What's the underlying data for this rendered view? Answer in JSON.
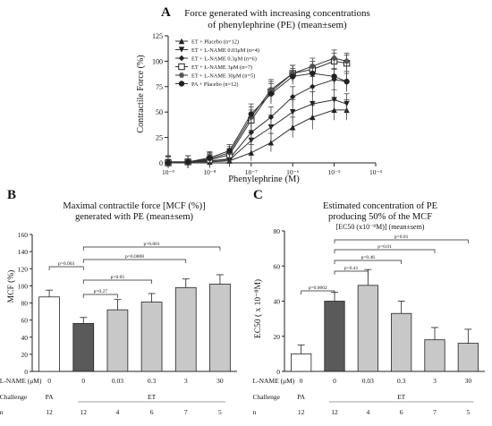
{
  "panels": {
    "a": {
      "letter": "A",
      "title_line1": "Force generated with increasing concentrations",
      "title_line2": "of phenylephrine (PE) (mean±sem)",
      "ylabel": "Contractile Force (%)",
      "xlabel": "Phenylephrine (M)"
    },
    "b": {
      "letter": "B",
      "title_line1": "Maximal contractile force [MCF (%)]",
      "title_line2": "generated with PE (mean±sem)",
      "ylabel": "MCF (%)"
    },
    "c": {
      "letter": "C",
      "title_line1": "Estimated concentration of PE",
      "title_line2": "producing 50% of the MCF",
      "title_line3": "[EC50 (x10⁻⁸M)] (mean±sem)",
      "ylabel": "EC50 ( x 10⁻⁸M)"
    }
  },
  "table": {
    "row_labels": [
      "L-NAME (μM)",
      "Challenge",
      "n"
    ],
    "lname": [
      "0",
      "0",
      "0.03",
      "0.3",
      "3",
      "30"
    ],
    "challenge_pa": "PA",
    "challenge_et": "ET",
    "n": [
      "12",
      "12",
      "4",
      "6",
      "7",
      "5"
    ]
  },
  "chart_data": [
    {
      "type": "line",
      "title": "Force generated with increasing concentrations of phenylephrine (PE) (mean±sem)",
      "xlabel": "Phenylephrine (M)",
      "ylabel": "Contractile Force (%)",
      "x_scale": "log",
      "xlim": [
        1e-09,
        0.0001
      ],
      "ylim": [
        0,
        125
      ],
      "x_ticks": [
        "10⁻⁹",
        "10⁻⁸",
        "10⁻⁷",
        "10⁻⁶",
        "10⁻⁵",
        "10⁻⁴"
      ],
      "y_ticks": [
        0,
        25,
        50,
        75,
        100,
        125
      ],
      "legend_position": "top-left",
      "x": [
        1e-09,
        3e-09,
        1e-08,
        3e-08,
        1e-07,
        3e-07,
        1e-06,
        3e-06,
        1e-05,
        2e-05
      ],
      "series": [
        {
          "name": "ET + Placebo (n=12)",
          "marker": "triangle-up",
          "values": [
            1,
            1,
            1,
            2,
            10,
            20,
            35,
            45,
            52,
            52
          ],
          "errors": [
            6,
            6,
            6,
            6,
            8,
            9,
            10,
            12,
            10,
            10
          ]
        },
        {
          "name": "ET + L-NAME 0.03μM (n=4)",
          "marker": "triangle-down",
          "values": [
            1,
            1,
            2,
            3,
            22,
            35,
            50,
            58,
            62,
            58
          ],
          "errors": [
            6,
            6,
            6,
            6,
            10,
            12,
            12,
            12,
            10,
            10
          ]
        },
        {
          "name": "ET + L-NAME 0.3μM (n=6)",
          "marker": "diamond",
          "values": [
            0,
            1,
            2,
            4,
            30,
            45,
            65,
            75,
            82,
            80
          ],
          "errors": [
            6,
            6,
            6,
            6,
            10,
            10,
            10,
            10,
            10,
            10
          ]
        },
        {
          "name": "ET + L-NAME 3μM (n=7)",
          "marker": "square",
          "values": [
            0,
            1,
            3,
            8,
            42,
            70,
            88,
            92,
            100,
            98
          ],
          "errors": [
            6,
            6,
            6,
            6,
            10,
            10,
            8,
            8,
            8,
            8
          ]
        },
        {
          "name": "ET + L-NAME 30μM (n=5)",
          "marker": "hexagon",
          "values": [
            0,
            1,
            4,
            10,
            45,
            72,
            88,
            95,
            103,
            100
          ],
          "errors": [
            6,
            6,
            6,
            6,
            10,
            10,
            8,
            8,
            8,
            8
          ]
        },
        {
          "name": "PA + Placebo (n=12)",
          "marker": "circle",
          "values": [
            0,
            1,
            5,
            12,
            48,
            68,
            85,
            88,
            85,
            80
          ],
          "errors": [
            6,
            6,
            6,
            6,
            10,
            10,
            8,
            8,
            8,
            8
          ]
        }
      ]
    },
    {
      "type": "bar",
      "title": "Maximal contractile force [MCF (%)] generated with PE (mean±sem)",
      "ylabel": "MCF (%)",
      "ylim": [
        0,
        160
      ],
      "y_ticks": [
        0,
        20,
        40,
        60,
        80,
        100,
        120,
        140,
        160
      ],
      "categories": [
        "0 PA",
        "0 ET",
        "0.03 ET",
        "0.3 ET",
        "3 ET",
        "30 ET"
      ],
      "values": [
        87,
        56,
        72,
        81,
        98,
        102
      ],
      "errors": [
        8,
        7,
        12,
        10,
        10,
        11
      ],
      "bar_colors": [
        "#ffffff",
        "#5a5a5a",
        "#c8c8c8",
        "#c8c8c8",
        "#c8c8c8",
        "#c8c8c8"
      ],
      "comparisons": [
        {
          "from": 0,
          "to": 1,
          "label": "p=0.003"
        },
        {
          "from": 1,
          "to": 2,
          "label": "p=0.27"
        },
        {
          "from": 1,
          "to": 3,
          "label": "p=0.05"
        },
        {
          "from": 1,
          "to": 4,
          "label": "p=0.0008"
        },
        {
          "from": 1,
          "to": 5,
          "label": "p=0.001"
        }
      ]
    },
    {
      "type": "bar",
      "title": "Estimated concentration of PE producing 50% of the MCF [EC50 (x10⁻⁸M)] (mean±sem)",
      "ylabel": "EC50 ( x 10⁻⁸M)",
      "ylim": [
        0,
        80
      ],
      "y_ticks": [
        0,
        20,
        40,
        60,
        80
      ],
      "categories": [
        "0 PA",
        "0 ET",
        "0.03 ET",
        "0.3 ET",
        "3 ET",
        "30 ET"
      ],
      "values": [
        10,
        40,
        49,
        33,
        18,
        16
      ],
      "errors": [
        5,
        5,
        9,
        7,
        7,
        8
      ],
      "bar_colors": [
        "#ffffff",
        "#5a5a5a",
        "#c8c8c8",
        "#c8c8c8",
        "#c8c8c8",
        "#c8c8c8"
      ],
      "comparisons": [
        {
          "from": 0,
          "to": 1,
          "label": "p=0.0002"
        },
        {
          "from": 1,
          "to": 2,
          "label": "p=0.41"
        },
        {
          "from": 1,
          "to": 3,
          "label": "p=0.46"
        },
        {
          "from": 1,
          "to": 4,
          "label": "p=0.01"
        },
        {
          "from": 1,
          "to": 5,
          "label": "p=0.01"
        }
      ]
    }
  ]
}
